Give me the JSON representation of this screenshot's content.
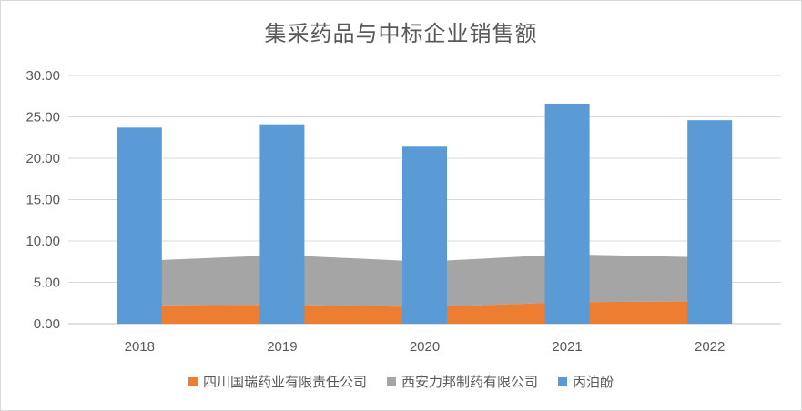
{
  "chart_data": {
    "type": "bar",
    "title": "集采药品与中标企业销售额",
    "categories": [
      "2018",
      "2019",
      "2020",
      "2021",
      "2022"
    ],
    "ylim": [
      0,
      30
    ],
    "yticks": [
      "0.00",
      "5.00",
      "10.00",
      "15.00",
      "20.00",
      "25.00",
      "30.00"
    ],
    "grid": true,
    "legend_position": "bottom",
    "series": [
      {
        "name": "四川国瑞药业有限责任公司",
        "type": "area",
        "stacked": true,
        "color": "#ED7D31",
        "values": [
          2.2,
          2.3,
          2.0,
          2.6,
          2.7
        ]
      },
      {
        "name": "西安力邦制药有限公司",
        "type": "area",
        "stacked": true,
        "color": "#A5A5A5",
        "values": [
          5.4,
          6.0,
          5.5,
          5.8,
          5.3
        ]
      },
      {
        "name": "丙泊酚",
        "type": "bar",
        "color": "#5B9BD5",
        "values": [
          23.7,
          24.1,
          21.4,
          26.6,
          24.6
        ]
      }
    ]
  }
}
